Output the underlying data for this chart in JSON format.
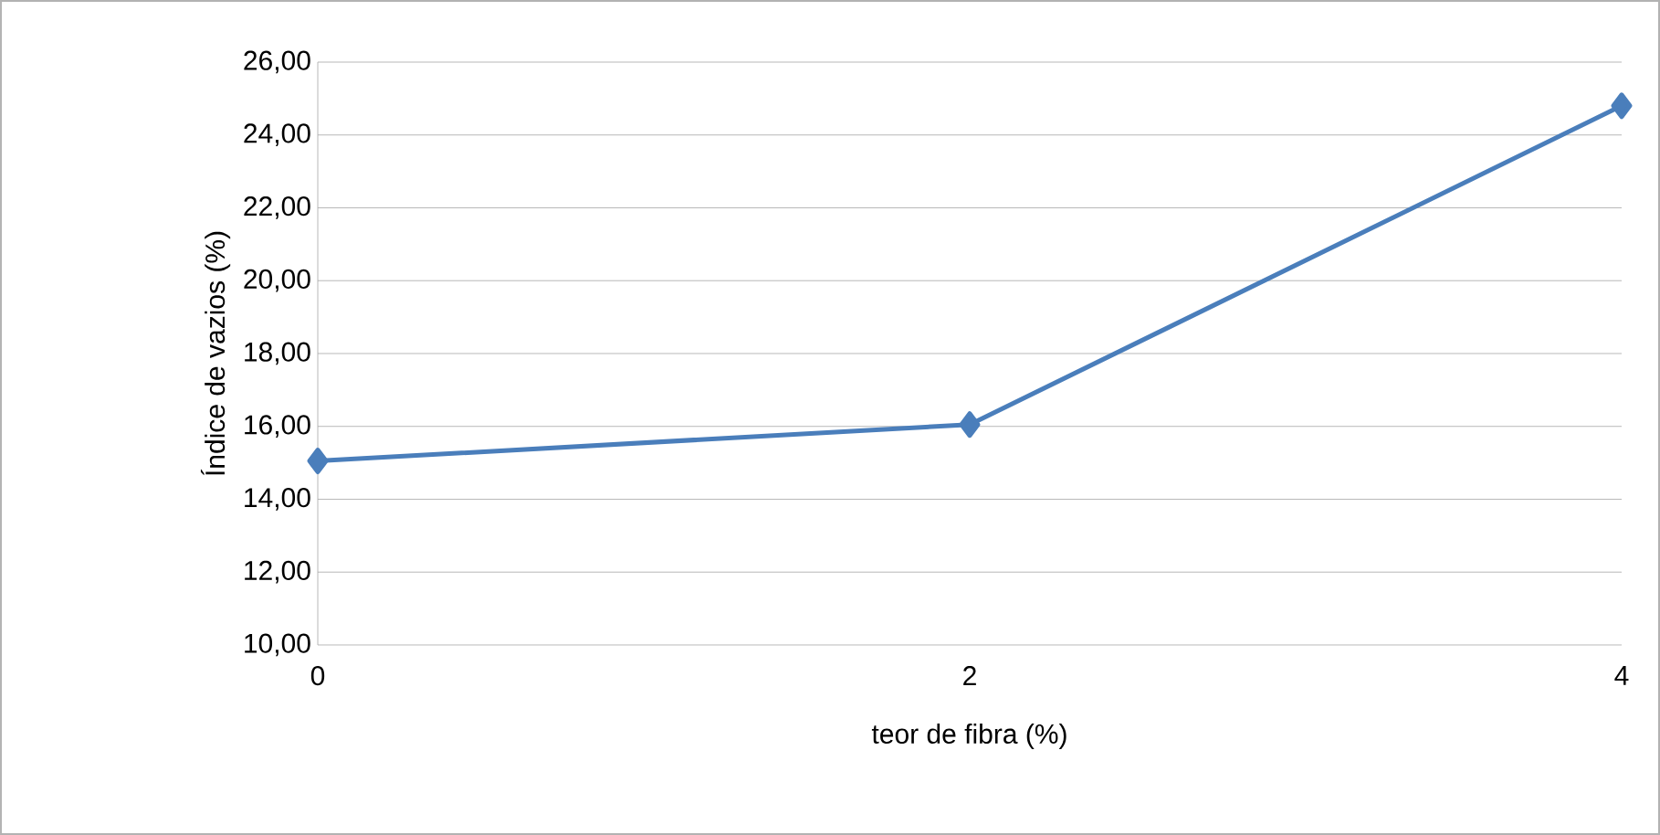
{
  "chart_data": {
    "type": "line",
    "xlabel": "teor de fibra (%)",
    "ylabel": "Índice de vazios (%)",
    "x": [
      0,
      2,
      4
    ],
    "series": [
      {
        "color": "#4a7ebb",
        "values": [
          15.05,
          16.05,
          24.8
        ]
      }
    ],
    "xlim": [
      0,
      4
    ],
    "xticks": [
      0,
      2,
      4
    ],
    "ylim": [
      10,
      26
    ],
    "yticks": [
      {
        "value": 10,
        "label": "10,00"
      },
      {
        "value": 12,
        "label": "12,00"
      },
      {
        "value": 14,
        "label": "14,00"
      },
      {
        "value": 16,
        "label": "16,00"
      },
      {
        "value": 18,
        "label": "18,00"
      },
      {
        "value": 20,
        "label": "20,00"
      },
      {
        "value": 22,
        "label": "22,00"
      },
      {
        "value": 24,
        "label": "24,00"
      },
      {
        "value": 26,
        "label": "26,00"
      }
    ],
    "grid": "y",
    "marker": "diamond",
    "line_style": "solid"
  }
}
